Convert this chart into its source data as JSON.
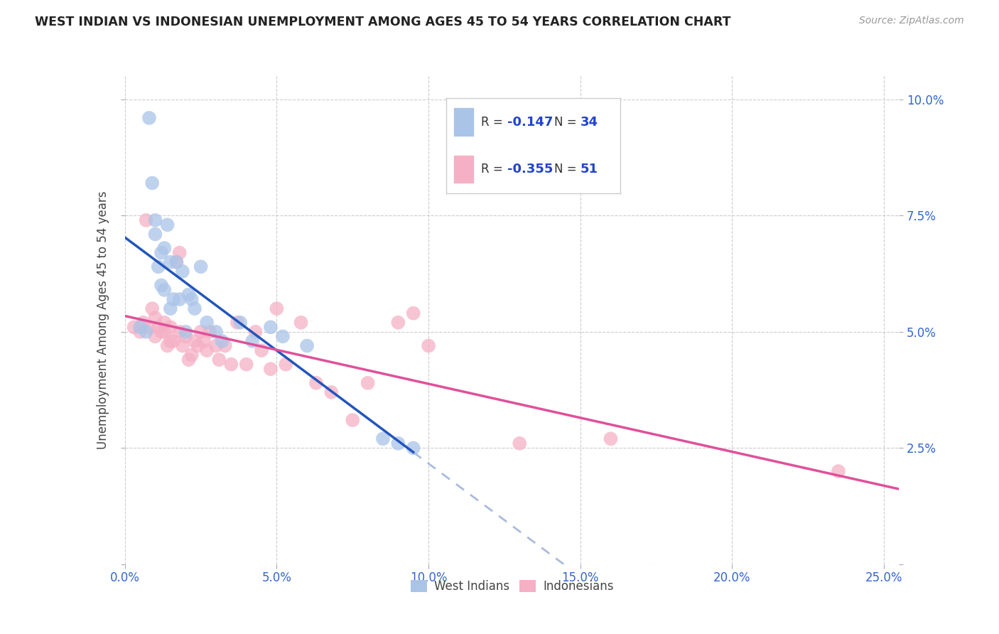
{
  "title": "WEST INDIAN VS INDONESIAN UNEMPLOYMENT AMONG AGES 45 TO 54 YEARS CORRELATION CHART",
  "source": "Source: ZipAtlas.com",
  "ylabel": "Unemployment Among Ages 45 to 54 years",
  "xlim": [
    0.0,
    0.255
  ],
  "ylim": [
    0.0,
    0.105
  ],
  "xlabel_ticks": [
    0.0,
    0.05,
    0.1,
    0.15,
    0.2,
    0.25
  ],
  "xlabel_labels": [
    "0.0%",
    "5.0%",
    "10.0%",
    "15.0%",
    "20.0%",
    "25.0%"
  ],
  "ylabel_ticks": [
    0.0,
    0.025,
    0.05,
    0.075,
    0.1
  ],
  "ylabel_labels": [
    "",
    "2.5%",
    "5.0%",
    "7.5%",
    "10.0%"
  ],
  "west_indian_R": "-0.147",
  "west_indian_N": "34",
  "indonesian_R": "-0.355",
  "indonesian_N": "51",
  "west_indian_color": "#aac4e8",
  "indonesian_color": "#f5b0c5",
  "west_indian_line_color": "#2255bb",
  "indonesian_line_color": "#e0509a",
  "dashed_line_color": "#aabbdd",
  "background_color": "#ffffff",
  "grid_color": "#cccccc",
  "wi_x": [
    0.005,
    0.007,
    0.008,
    0.009,
    0.01,
    0.01,
    0.011,
    0.012,
    0.012,
    0.013,
    0.013,
    0.014,
    0.015,
    0.015,
    0.016,
    0.017,
    0.018,
    0.019,
    0.02,
    0.021,
    0.022,
    0.023,
    0.025,
    0.027,
    0.03,
    0.032,
    0.038,
    0.042,
    0.048,
    0.052,
    0.06,
    0.085,
    0.09,
    0.095
  ],
  "wi_y": [
    0.051,
    0.05,
    0.096,
    0.082,
    0.074,
    0.071,
    0.064,
    0.06,
    0.067,
    0.059,
    0.068,
    0.073,
    0.065,
    0.055,
    0.057,
    0.065,
    0.057,
    0.063,
    0.05,
    0.058,
    0.057,
    0.055,
    0.064,
    0.052,
    0.05,
    0.048,
    0.052,
    0.048,
    0.051,
    0.049,
    0.047,
    0.027,
    0.026,
    0.025
  ],
  "ind_x": [
    0.003,
    0.005,
    0.006,
    0.007,
    0.008,
    0.009,
    0.01,
    0.01,
    0.011,
    0.012,
    0.013,
    0.013,
    0.014,
    0.015,
    0.015,
    0.016,
    0.017,
    0.018,
    0.018,
    0.019,
    0.02,
    0.021,
    0.022,
    0.023,
    0.024,
    0.025,
    0.026,
    0.027,
    0.028,
    0.03,
    0.031,
    0.033,
    0.035,
    0.037,
    0.04,
    0.043,
    0.045,
    0.048,
    0.05,
    0.053,
    0.058,
    0.063,
    0.068,
    0.075,
    0.08,
    0.09,
    0.095,
    0.1,
    0.13,
    0.16,
    0.235
  ],
  "ind_y": [
    0.051,
    0.05,
    0.052,
    0.074,
    0.051,
    0.055,
    0.049,
    0.053,
    0.051,
    0.05,
    0.05,
    0.052,
    0.047,
    0.048,
    0.051,
    0.048,
    0.065,
    0.067,
    0.05,
    0.047,
    0.049,
    0.044,
    0.045,
    0.048,
    0.047,
    0.05,
    0.048,
    0.046,
    0.05,
    0.047,
    0.044,
    0.047,
    0.043,
    0.052,
    0.043,
    0.05,
    0.046,
    0.042,
    0.055,
    0.043,
    0.052,
    0.039,
    0.037,
    0.031,
    0.039,
    0.052,
    0.054,
    0.047,
    0.026,
    0.027,
    0.02
  ],
  "legend_wi_label": "West Indians",
  "legend_ind_label": "Indonesians"
}
